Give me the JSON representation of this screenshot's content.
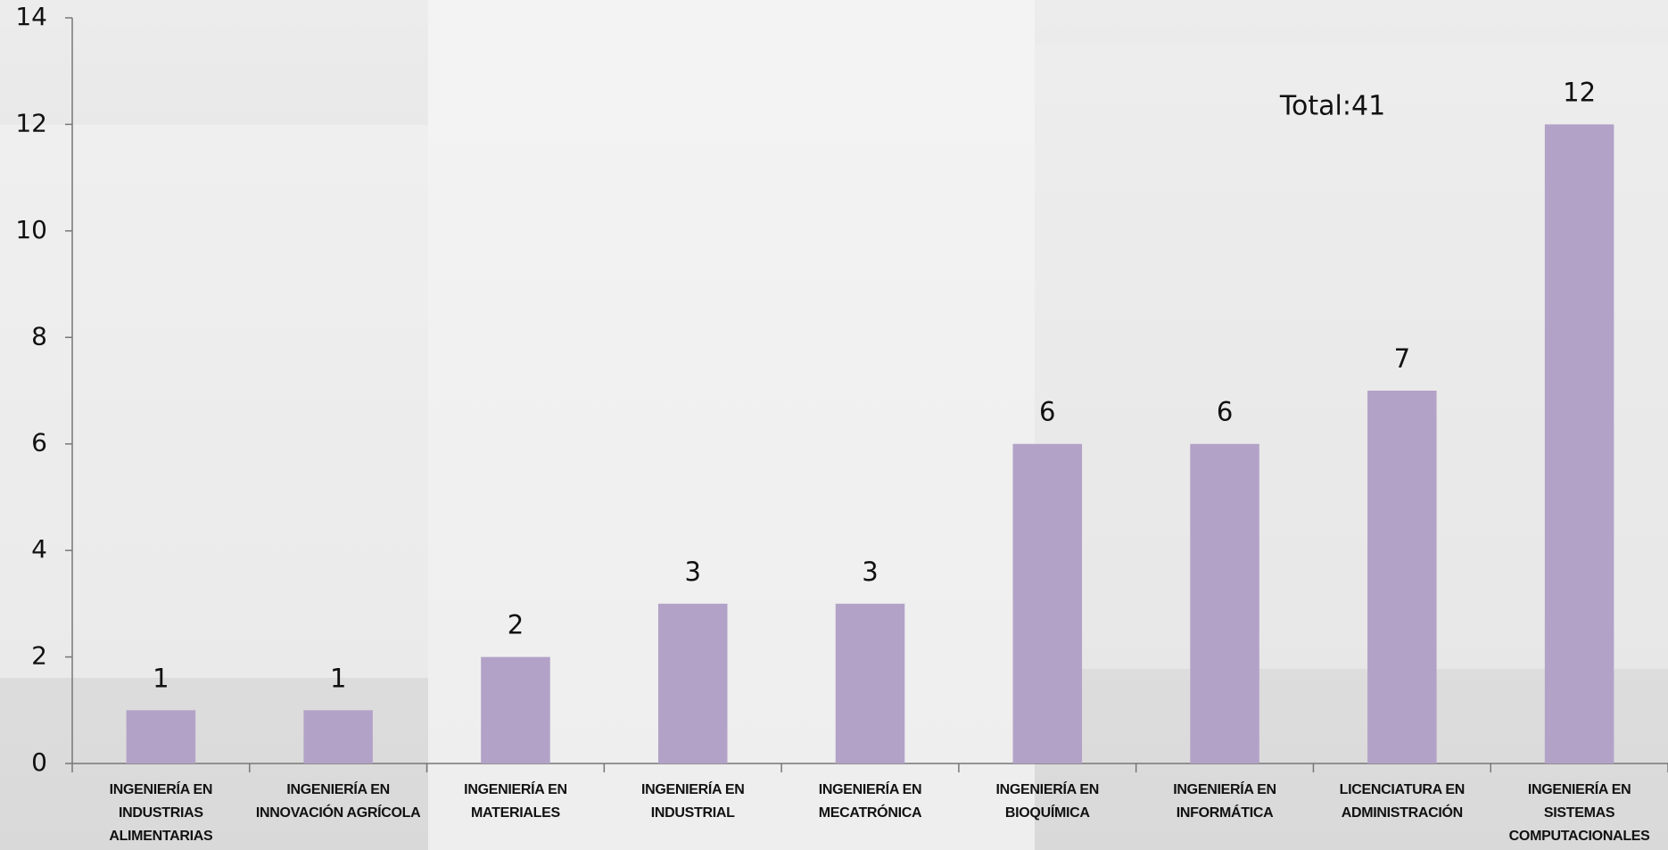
{
  "chart_data": {
    "type": "bar",
    "annotation": "Total:41",
    "categories": [
      "INGENIERÍA EN INDUSTRIAS ALIMENTARIAS",
      "INGENIERÍA EN INNOVACIÓN AGRÍCOLA",
      "INGENIERÍA EN MATERIALES",
      "INGENIERÍA EN INDUSTRIAL",
      "INGENIERÍA EN MECATRÓNICA",
      "INGENIERÍA EN BIOQUÍMICA",
      "INGENIERÍA EN INFORMÁTICA",
      "LICENCIATURA EN ADMINISTRACIÓN",
      "INGENIERÍA EN SISTEMAS COMPUTACIONALES"
    ],
    "values": [
      1,
      1,
      2,
      3,
      3,
      6,
      6,
      7,
      12
    ],
    "color": "#b3a2c7",
    "ylim": [
      0,
      14
    ],
    "yticks": [
      0,
      2,
      4,
      6,
      8,
      10,
      12,
      14
    ],
    "grid": false
  }
}
